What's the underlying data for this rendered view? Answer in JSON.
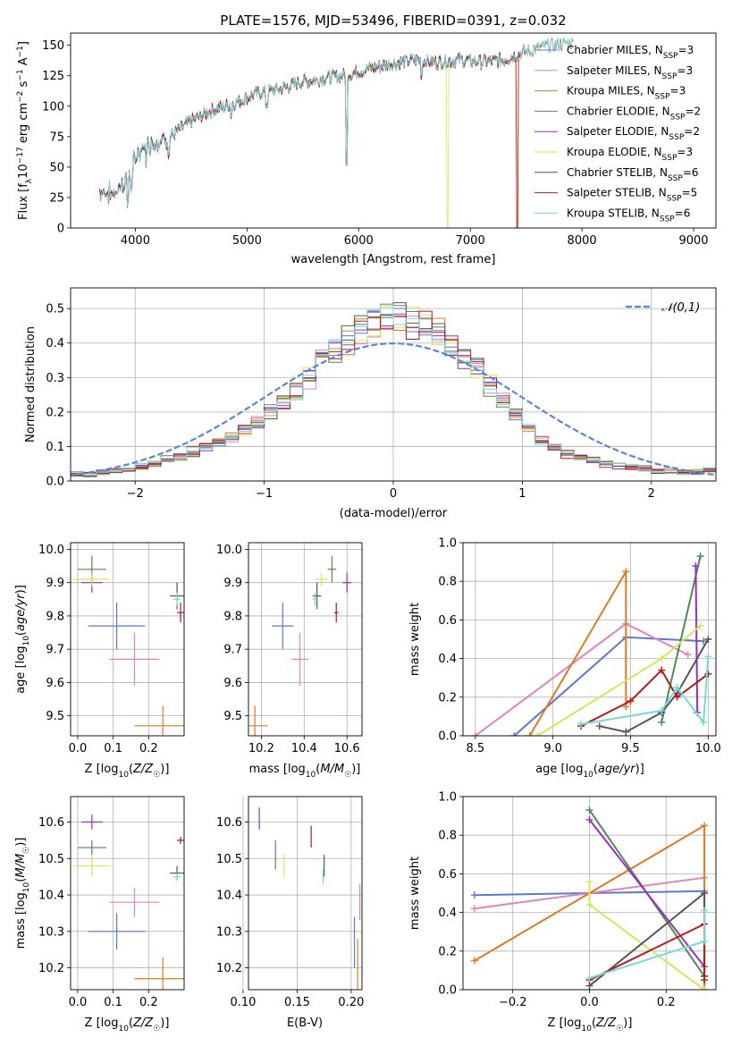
{
  "title": "PLATE=1576, MJD=53496, FIBERID=0391, z=0.032",
  "colors": {
    "Chabrier MILES": "#5b79c8",
    "Salpeter MILES": "#e383ba",
    "Kroupa MILES": "#e07a22",
    "Chabrier ELODIE": "#4e8a55",
    "Salpeter ELODIE": "#9a2ec0",
    "Kroupa ELODIE": "#d6e65a",
    "Chabrier STELIB": "#555555",
    "Salpeter STELIB": "#b51a1a",
    "Kroupa STELIB": "#7ad8dc",
    "gauss": "#5b86d6"
  },
  "chart_data": [
    {
      "type": "line",
      "title": "PLATE=1576, MJD=53496, FIBERID=0391, z=0.032",
      "xlabel": "wavelength [Angstrom, rest frame]",
      "ylabel": "Flux [fλ10⁻¹⁷ erg cm⁻² s⁻¹ A⁻¹]",
      "xlim": [
        3420,
        9200
      ],
      "ylim": [
        0,
        160
      ],
      "xticks": [
        4000,
        5000,
        6000,
        7000,
        8000,
        9000
      ],
      "yticks": [
        0,
        25,
        50,
        75,
        100,
        125,
        150
      ],
      "legend": [
        "Chabrier MILES, NSSP=3",
        "Salpeter MILES, NSSP=3",
        "Kroupa MILES, NSSP=3",
        "Chabrier ELODIE, NSSP=2",
        "Salpeter ELODIE, NSSP=2",
        "Kroupa ELODIE, NSSP=3",
        "Chabrier STELIB, NSSP=6",
        "Salpeter STELIB, NSSP=5",
        "Kroupa STELIB, NSSP=6"
      ],
      "legend_location": "upper right",
      "spectrum_shape": {
        "x": [
          3700,
          3800,
          3900,
          4000,
          4100,
          4200,
          4300,
          4500,
          4700,
          4900,
          5100,
          5300,
          5500,
          5700,
          5900,
          6100,
          6300,
          6500,
          6700,
          6900,
          7100,
          7300,
          7500,
          7700,
          7900
        ],
        "y": [
          30,
          28,
          38,
          58,
          68,
          72,
          74,
          88,
          97,
          103,
          111,
          114,
          120,
          123,
          126,
          131,
          135,
          138,
          136,
          138,
          136,
          138,
          145,
          150,
          152
        ]
      },
      "cutoffs": [
        {
          "series": "Kroupa ELODIE",
          "x": 6795
        },
        {
          "series": "Kroupa MILES",
          "x": 7420
        },
        {
          "series": "Salpeter STELIB",
          "x": 7420
        }
      ]
    },
    {
      "type": "histogram",
      "xlabel": "(data-model)/error",
      "ylabel": "Normed distribution",
      "xlim": [
        -2.5,
        2.5
      ],
      "ylim": [
        0,
        0.56
      ],
      "xticks": [
        -2,
        -1,
        0,
        1,
        2
      ],
      "yticks": [
        0.0,
        0.1,
        0.2,
        0.3,
        0.4,
        0.5
      ],
      "grid": true,
      "legend": "𝒩(0,1)",
      "legend_location": "upper right",
      "bins": [
        -2.5,
        2.5,
        50
      ],
      "base_profile": [
        0.02,
        0.02,
        0.025,
        0.03,
        0.035,
        0.04,
        0.05,
        0.06,
        0.07,
        0.085,
        0.1,
        0.115,
        0.13,
        0.15,
        0.17,
        0.2,
        0.23,
        0.26,
        0.3,
        0.35,
        0.38,
        0.41,
        0.44,
        0.46,
        0.47,
        0.48,
        0.46,
        0.45,
        0.43,
        0.4,
        0.36,
        0.33,
        0.28,
        0.23,
        0.19,
        0.15,
        0.12,
        0.1,
        0.08,
        0.07,
        0.06,
        0.05,
        0.045,
        0.04,
        0.035,
        0.03,
        0.03,
        0.025,
        0.025,
        0.03
      ]
    },
    {
      "type": "errorbar",
      "xlabel": "Z [log10(Z/Z☉)]",
      "ylabel": "age  [log10(age/yr)]",
      "xlim": [
        -0.02,
        0.3
      ],
      "ylim": [
        9.44,
        10.02
      ],
      "xticks": [
        0.0,
        0.1,
        0.2
      ],
      "yticks": [
        9.5,
        9.6,
        9.7,
        9.8,
        9.9,
        10.0
      ],
      "grid": true,
      "points": [
        {
          "series": "Chabrier MILES",
          "x": 0.11,
          "xerr": 0.08,
          "y": 9.77,
          "yerr": 0.07
        },
        {
          "series": "Salpeter MILES",
          "x": 0.16,
          "xerr": 0.07,
          "y": 9.67,
          "yerr": 0.08
        },
        {
          "series": "Kroupa MILES",
          "x": 0.24,
          "xerr": 0.08,
          "y": 9.47,
          "yerr": 0.06
        },
        {
          "series": "Chabrier ELODIE",
          "x": 0.04,
          "xerr": 0.04,
          "y": 9.94,
          "yerr": 0.04
        },
        {
          "series": "Salpeter ELODIE",
          "x": 0.04,
          "xerr": 0.03,
          "y": 9.9,
          "yerr": 0.03
        },
        {
          "series": "Kroupa ELODIE",
          "x": 0.04,
          "xerr": 0.05,
          "y": 9.91,
          "yerr": 0.02
        },
        {
          "series": "Chabrier STELIB",
          "x": 0.28,
          "xerr": 0.02,
          "y": 9.86,
          "yerr": 0.04
        },
        {
          "series": "Salpeter STELIB",
          "x": 0.29,
          "xerr": 0.01,
          "y": 9.81,
          "yerr": 0.03
        },
        {
          "series": "Kroupa STELIB",
          "x": 0.28,
          "xerr": 0.01,
          "y": 9.85,
          "yerr": 0.02
        }
      ]
    },
    {
      "type": "errorbar",
      "xlabel": "mass [log10(M/M☉)]",
      "ylabel": "",
      "xlim": [
        10.14,
        10.67
      ],
      "ylim": [
        9.44,
        10.02
      ],
      "xticks": [
        10.2,
        10.4,
        10.6
      ],
      "yticks": [
        9.5,
        9.6,
        9.7,
        9.8,
        9.9,
        10.0
      ],
      "grid": true,
      "points": [
        {
          "series": "Chabrier MILES",
          "x": 10.3,
          "xerr": 0.05,
          "y": 9.77,
          "yerr": 0.07
        },
        {
          "series": "Salpeter MILES",
          "x": 10.38,
          "xerr": 0.04,
          "y": 9.67,
          "yerr": 0.08
        },
        {
          "series": "Kroupa MILES",
          "x": 10.17,
          "xerr": 0.06,
          "y": 9.47,
          "yerr": 0.06
        },
        {
          "series": "Chabrier ELODIE",
          "x": 10.53,
          "xerr": 0.02,
          "y": 9.94,
          "yerr": 0.04
        },
        {
          "series": "Salpeter ELODIE",
          "x": 10.6,
          "xerr": 0.02,
          "y": 9.9,
          "yerr": 0.03
        },
        {
          "series": "Kroupa ELODIE",
          "x": 10.48,
          "xerr": 0.03,
          "y": 9.91,
          "yerr": 0.02
        },
        {
          "series": "Chabrier STELIB",
          "x": 10.46,
          "xerr": 0.02,
          "y": 9.86,
          "yerr": 0.04
        },
        {
          "series": "Salpeter STELIB",
          "x": 10.55,
          "xerr": 0.01,
          "y": 9.81,
          "yerr": 0.03
        },
        {
          "series": "Kroupa STELIB",
          "x": 10.45,
          "xerr": 0.01,
          "y": 9.85,
          "yerr": 0.02
        }
      ]
    },
    {
      "type": "line",
      "xlabel": "age  [log10(age/yr)]",
      "ylabel": "mass weight",
      "xlim": [
        8.42,
        10.05
      ],
      "ylim": [
        0,
        1
      ],
      "xticks": [
        8.5,
        9.0,
        9.5,
        10.0
      ],
      "yticks": [
        0.0,
        0.2,
        0.4,
        0.6,
        0.8,
        1.0
      ],
      "grid": true,
      "series": [
        {
          "name": "Chabrier MILES",
          "x": [
            8.75,
            9.47,
            9.97
          ],
          "y": [
            0.0,
            0.51,
            0.49
          ]
        },
        {
          "name": "Salpeter MILES",
          "x": [
            8.5,
            9.47,
            9.87
          ],
          "y": [
            0.0,
            0.58,
            0.42
          ]
        },
        {
          "name": "Kroupa MILES",
          "x": [
            8.85,
            9.47,
            9.47
          ],
          "y": [
            0.0,
            0.85,
            0.15
          ]
        },
        {
          "name": "Chabrier ELODIE",
          "x": [
            9.7,
            9.95
          ],
          "y": [
            0.07,
            0.93
          ]
        },
        {
          "name": "Salpeter ELODIE",
          "x": [
            9.93,
            9.92
          ],
          "y": [
            0.12,
            0.88
          ]
        },
        {
          "name": "Kroupa ELODIE",
          "x": [
            8.9,
            9.7,
            9.95
          ],
          "y": [
            0.0,
            0.4,
            0.57
          ]
        },
        {
          "name": "Chabrier STELIB",
          "x": [
            9.3,
            9.47,
            9.7,
            9.8,
            10.0
          ],
          "y": [
            0.05,
            0.02,
            0.12,
            0.22,
            0.5
          ]
        },
        {
          "name": "Salpeter STELIB",
          "x": [
            9.18,
            9.5,
            9.7,
            9.8,
            10.0
          ],
          "y": [
            0.05,
            0.18,
            0.34,
            0.2,
            0.32
          ]
        },
        {
          "name": "Kroupa STELIB",
          "x": [
            9.18,
            9.7,
            9.8,
            9.97,
            10.0
          ],
          "y": [
            0.06,
            0.13,
            0.25,
            0.07,
            0.41
          ]
        }
      ]
    },
    {
      "type": "errorbar",
      "xlabel": "Z [log10(Z/Z☉)]",
      "ylabel": "mass [log10(M/M☉)]",
      "xlim": [
        -0.02,
        0.3
      ],
      "ylim": [
        10.14,
        10.67
      ],
      "xticks": [
        0.0,
        0.1,
        0.2
      ],
      "yticks": [
        10.2,
        10.3,
        10.4,
        10.5,
        10.6
      ],
      "grid": true,
      "points": [
        {
          "series": "Chabrier MILES",
          "x": 0.11,
          "xerr": 0.08,
          "y": 10.3,
          "yerr": 0.05
        },
        {
          "series": "Salpeter MILES",
          "x": 0.16,
          "xerr": 0.07,
          "y": 10.38,
          "yerr": 0.04
        },
        {
          "series": "Kroupa MILES",
          "x": 0.24,
          "xerr": 0.08,
          "y": 10.17,
          "yerr": 0.06
        },
        {
          "series": "Chabrier ELODIE",
          "x": 0.04,
          "xerr": 0.04,
          "y": 10.53,
          "yerr": 0.02
        },
        {
          "series": "Salpeter ELODIE",
          "x": 0.04,
          "xerr": 0.03,
          "y": 10.6,
          "yerr": 0.02
        },
        {
          "series": "Kroupa ELODIE",
          "x": 0.04,
          "xerr": 0.05,
          "y": 10.48,
          "yerr": 0.03
        },
        {
          "series": "Chabrier STELIB",
          "x": 0.28,
          "xerr": 0.02,
          "y": 10.46,
          "yerr": 0.02
        },
        {
          "series": "Salpeter STELIB",
          "x": 0.29,
          "xerr": 0.01,
          "y": 10.55,
          "yerr": 0.01
        },
        {
          "series": "Kroupa STELIB",
          "x": 0.28,
          "xerr": 0.01,
          "y": 10.45,
          "yerr": 0.01
        }
      ]
    },
    {
      "type": "errorbar",
      "xlabel": "E(B-V)",
      "ylabel": "",
      "xlim": [
        0.105,
        0.21
      ],
      "ylim": [
        10.14,
        10.67
      ],
      "xticks": [
        0.1,
        0.15,
        0.2
      ],
      "yticks": [
        10.2,
        10.3,
        10.4,
        10.5,
        10.6
      ],
      "grid": true,
      "points": [
        {
          "series": "Chabrier MILES",
          "x": 0.203,
          "xerr": 0,
          "y": 10.27,
          "yerr": 0.07
        },
        {
          "series": "Salpeter MILES",
          "x": 0.208,
          "xerr": 0,
          "y": 10.38,
          "yerr": 0.05
        },
        {
          "series": "Kroupa MILES",
          "x": 0.206,
          "xerr": 0,
          "y": 10.2,
          "yerr": 0.08
        },
        {
          "series": "Chabrier ELODIE",
          "x": 0.13,
          "xerr": 0,
          "y": 10.51,
          "yerr": 0.04
        },
        {
          "series": "Salpeter ELODIE",
          "x": 0.115,
          "xerr": 0,
          "y": 10.61,
          "yerr": 0.03
        },
        {
          "series": "Kroupa ELODIE",
          "x": 0.138,
          "xerr": 0,
          "y": 10.48,
          "yerr": 0.03
        },
        {
          "series": "Chabrier STELIB",
          "x": 0.175,
          "xerr": 0,
          "y": 10.48,
          "yerr": 0.03
        },
        {
          "series": "Salpeter STELIB",
          "x": 0.163,
          "xerr": 0,
          "y": 10.56,
          "yerr": 0.03
        },
        {
          "series": "Kroupa STELIB",
          "x": 0.174,
          "xerr": 0,
          "y": 10.45,
          "yerr": 0.02
        }
      ]
    },
    {
      "type": "line",
      "xlabel": "Z [log10(Z/Z☉)]",
      "ylabel": "mass weight",
      "xlim": [
        -0.33,
        0.33
      ],
      "ylim": [
        0,
        1
      ],
      "xticks": [
        -0.2,
        0.0,
        0.2
      ],
      "yticks": [
        0.0,
        0.2,
        0.4,
        0.6,
        0.8,
        1.0
      ],
      "grid": true,
      "series": [
        {
          "name": "Chabrier MILES",
          "x": [
            -0.3,
            0.3
          ],
          "y": [
            0.49,
            0.51
          ]
        },
        {
          "name": "Salpeter MILES",
          "x": [
            -0.3,
            0.3
          ],
          "y": [
            0.42,
            0.58
          ]
        },
        {
          "name": "Kroupa MILES",
          "x": [
            -0.3,
            0.3,
            0.3
          ],
          "y": [
            0.15,
            0.85,
            0.0
          ]
        },
        {
          "name": "Chabrier ELODIE",
          "x": [
            0.0,
            0.3
          ],
          "y": [
            0.93,
            0.07
          ]
        },
        {
          "name": "Salpeter ELODIE",
          "x": [
            0.0,
            0.3
          ],
          "y": [
            0.88,
            0.12
          ]
        },
        {
          "name": "Kroupa ELODIE",
          "x": [
            0.0,
            0.0,
            0.3
          ],
          "y": [
            0.56,
            0.44,
            0.0
          ]
        },
        {
          "name": "Chabrier STELIB",
          "x": [
            0.0,
            0.3,
            0.3
          ],
          "y": [
            0.02,
            0.5,
            0.07
          ]
        },
        {
          "name": "Salpeter STELIB",
          "x": [
            0.0,
            0.3,
            0.3
          ],
          "y": [
            0.05,
            0.34,
            0.05
          ]
        },
        {
          "name": "Kroupa STELIB",
          "x": [
            0.0,
            0.3,
            0.3
          ],
          "y": [
            0.06,
            0.25,
            0.41
          ]
        }
      ]
    }
  ]
}
